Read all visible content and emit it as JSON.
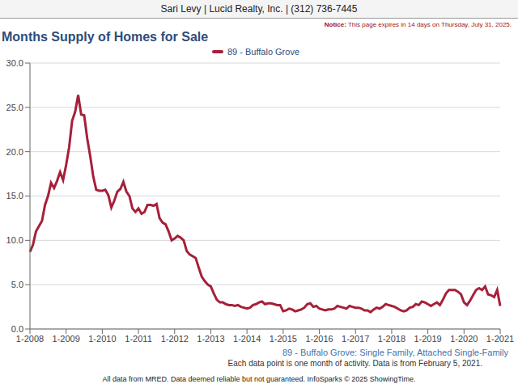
{
  "chart_data": {
    "type": "line",
    "header": "Sari Levy | Lucid Realty, Inc. | (312) 736-7445",
    "notice": {
      "label": "Notice:",
      "text": "This page expires in 14 days on Thursday, July 31, 2025."
    },
    "title": "Months Supply of Homes for Sale",
    "subtitle": "89 - Buffalo Grove: Single Family, Attached Single-Family",
    "note": "Each data point is one month of activity. Data is from February 5, 2021.",
    "footer": "All data from MRED. Data deemed reliable but not guaranteed. InfoSparks © 2025 ShowingTime.",
    "legend": "top",
    "grid": true,
    "categories": [
      "1-2008",
      null,
      null,
      null,
      null,
      null,
      null,
      null,
      null,
      null,
      null,
      null,
      "1-2009",
      null,
      null,
      null,
      null,
      null,
      null,
      null,
      null,
      null,
      null,
      null,
      "1-2010",
      null,
      null,
      null,
      null,
      null,
      null,
      null,
      null,
      null,
      null,
      null,
      "1-2011",
      null,
      null,
      null,
      null,
      null,
      null,
      null,
      null,
      null,
      null,
      null,
      "1-2012",
      null,
      null,
      null,
      null,
      null,
      null,
      null,
      null,
      null,
      null,
      null,
      "1-2013",
      null,
      null,
      null,
      null,
      null,
      null,
      null,
      null,
      null,
      null,
      null,
      "1-2014",
      null,
      null,
      null,
      null,
      null,
      null,
      null,
      null,
      null,
      null,
      null,
      "1-2015",
      null,
      null,
      null,
      null,
      null,
      null,
      null,
      null,
      null,
      null,
      null,
      "1-2016",
      null,
      null,
      null,
      null,
      null,
      null,
      null,
      null,
      null,
      null,
      null,
      "1-2017",
      null,
      null,
      null,
      null,
      null,
      null,
      null,
      null,
      null,
      null,
      null,
      "1-2018",
      null,
      null,
      null,
      null,
      null,
      null,
      null,
      null,
      null,
      null,
      null,
      "1-2019",
      null,
      null,
      null,
      null,
      null,
      null,
      null,
      null,
      null,
      null,
      null,
      "1-2020",
      null,
      null,
      null,
      null,
      null,
      null,
      null,
      null,
      null,
      null,
      null,
      "1-2021"
    ],
    "series": [
      {
        "name": "89 - Buffalo Grove",
        "color": "#a6203a",
        "values": [
          8.7,
          9.5,
          11.0,
          11.6,
          12.2,
          14.0,
          15.0,
          16.5,
          15.9,
          16.7,
          17.7,
          16.8,
          18.5,
          20.5,
          23.5,
          24.5,
          26.4,
          24.2,
          24.1,
          21.5,
          19.5,
          17.2,
          15.7,
          15.6,
          15.6,
          15.7,
          15.1,
          13.7,
          14.5,
          15.5,
          15.8,
          16.6,
          15.5,
          15.0,
          13.6,
          13.2,
          13.6,
          13.0,
          13.2,
          14.0,
          14.0,
          13.9,
          14.1,
          12.5,
          12.0,
          11.8,
          11.0,
          10.0,
          10.2,
          10.5,
          10.3,
          10.0,
          8.8,
          8.4,
          8.2,
          8.0,
          6.9,
          5.9,
          5.4,
          5.0,
          4.8,
          4.0,
          3.3,
          3.0,
          3.0,
          2.8,
          2.7,
          2.7,
          2.6,
          2.7,
          2.5,
          2.4,
          2.3,
          2.4,
          2.7,
          2.8,
          3.0,
          3.1,
          2.8,
          2.9,
          2.9,
          2.8,
          2.7,
          2.7,
          2.0,
          2.1,
          2.3,
          2.2,
          2.0,
          2.1,
          2.2,
          2.4,
          2.8,
          2.9,
          2.5,
          2.6,
          2.3,
          2.2,
          2.1,
          2.2,
          2.2,
          2.3,
          2.6,
          2.5,
          2.4,
          2.3,
          2.6,
          2.5,
          2.4,
          2.4,
          2.3,
          2.1,
          2.1,
          1.9,
          2.2,
          2.4,
          2.3,
          2.5,
          2.8,
          2.7,
          2.6,
          2.5,
          2.3,
          2.1,
          2.0,
          2.1,
          2.4,
          2.5,
          2.8,
          2.7,
          3.1,
          3.0,
          2.8,
          2.6,
          2.8,
          3.0,
          2.7,
          3.3,
          4.0,
          4.4,
          4.4,
          4.4,
          4.2,
          3.9,
          3.0,
          2.7,
          3.2,
          3.8,
          4.4,
          4.6,
          4.4,
          4.8,
          3.9,
          3.8,
          3.6,
          4.4,
          2.6
        ]
      }
    ],
    "ylim": [
      0,
      30
    ],
    "yticks": [
      {
        "value": 0,
        "label": "0.0"
      },
      {
        "value": 5,
        "label": "5.0"
      },
      {
        "value": 10,
        "label": "10.0"
      },
      {
        "value": 15,
        "label": "15.0"
      },
      {
        "value": 20,
        "label": "20.0"
      },
      {
        "value": 25,
        "label": "25.0"
      },
      {
        "value": 30,
        "label": "30.0"
      }
    ]
  }
}
